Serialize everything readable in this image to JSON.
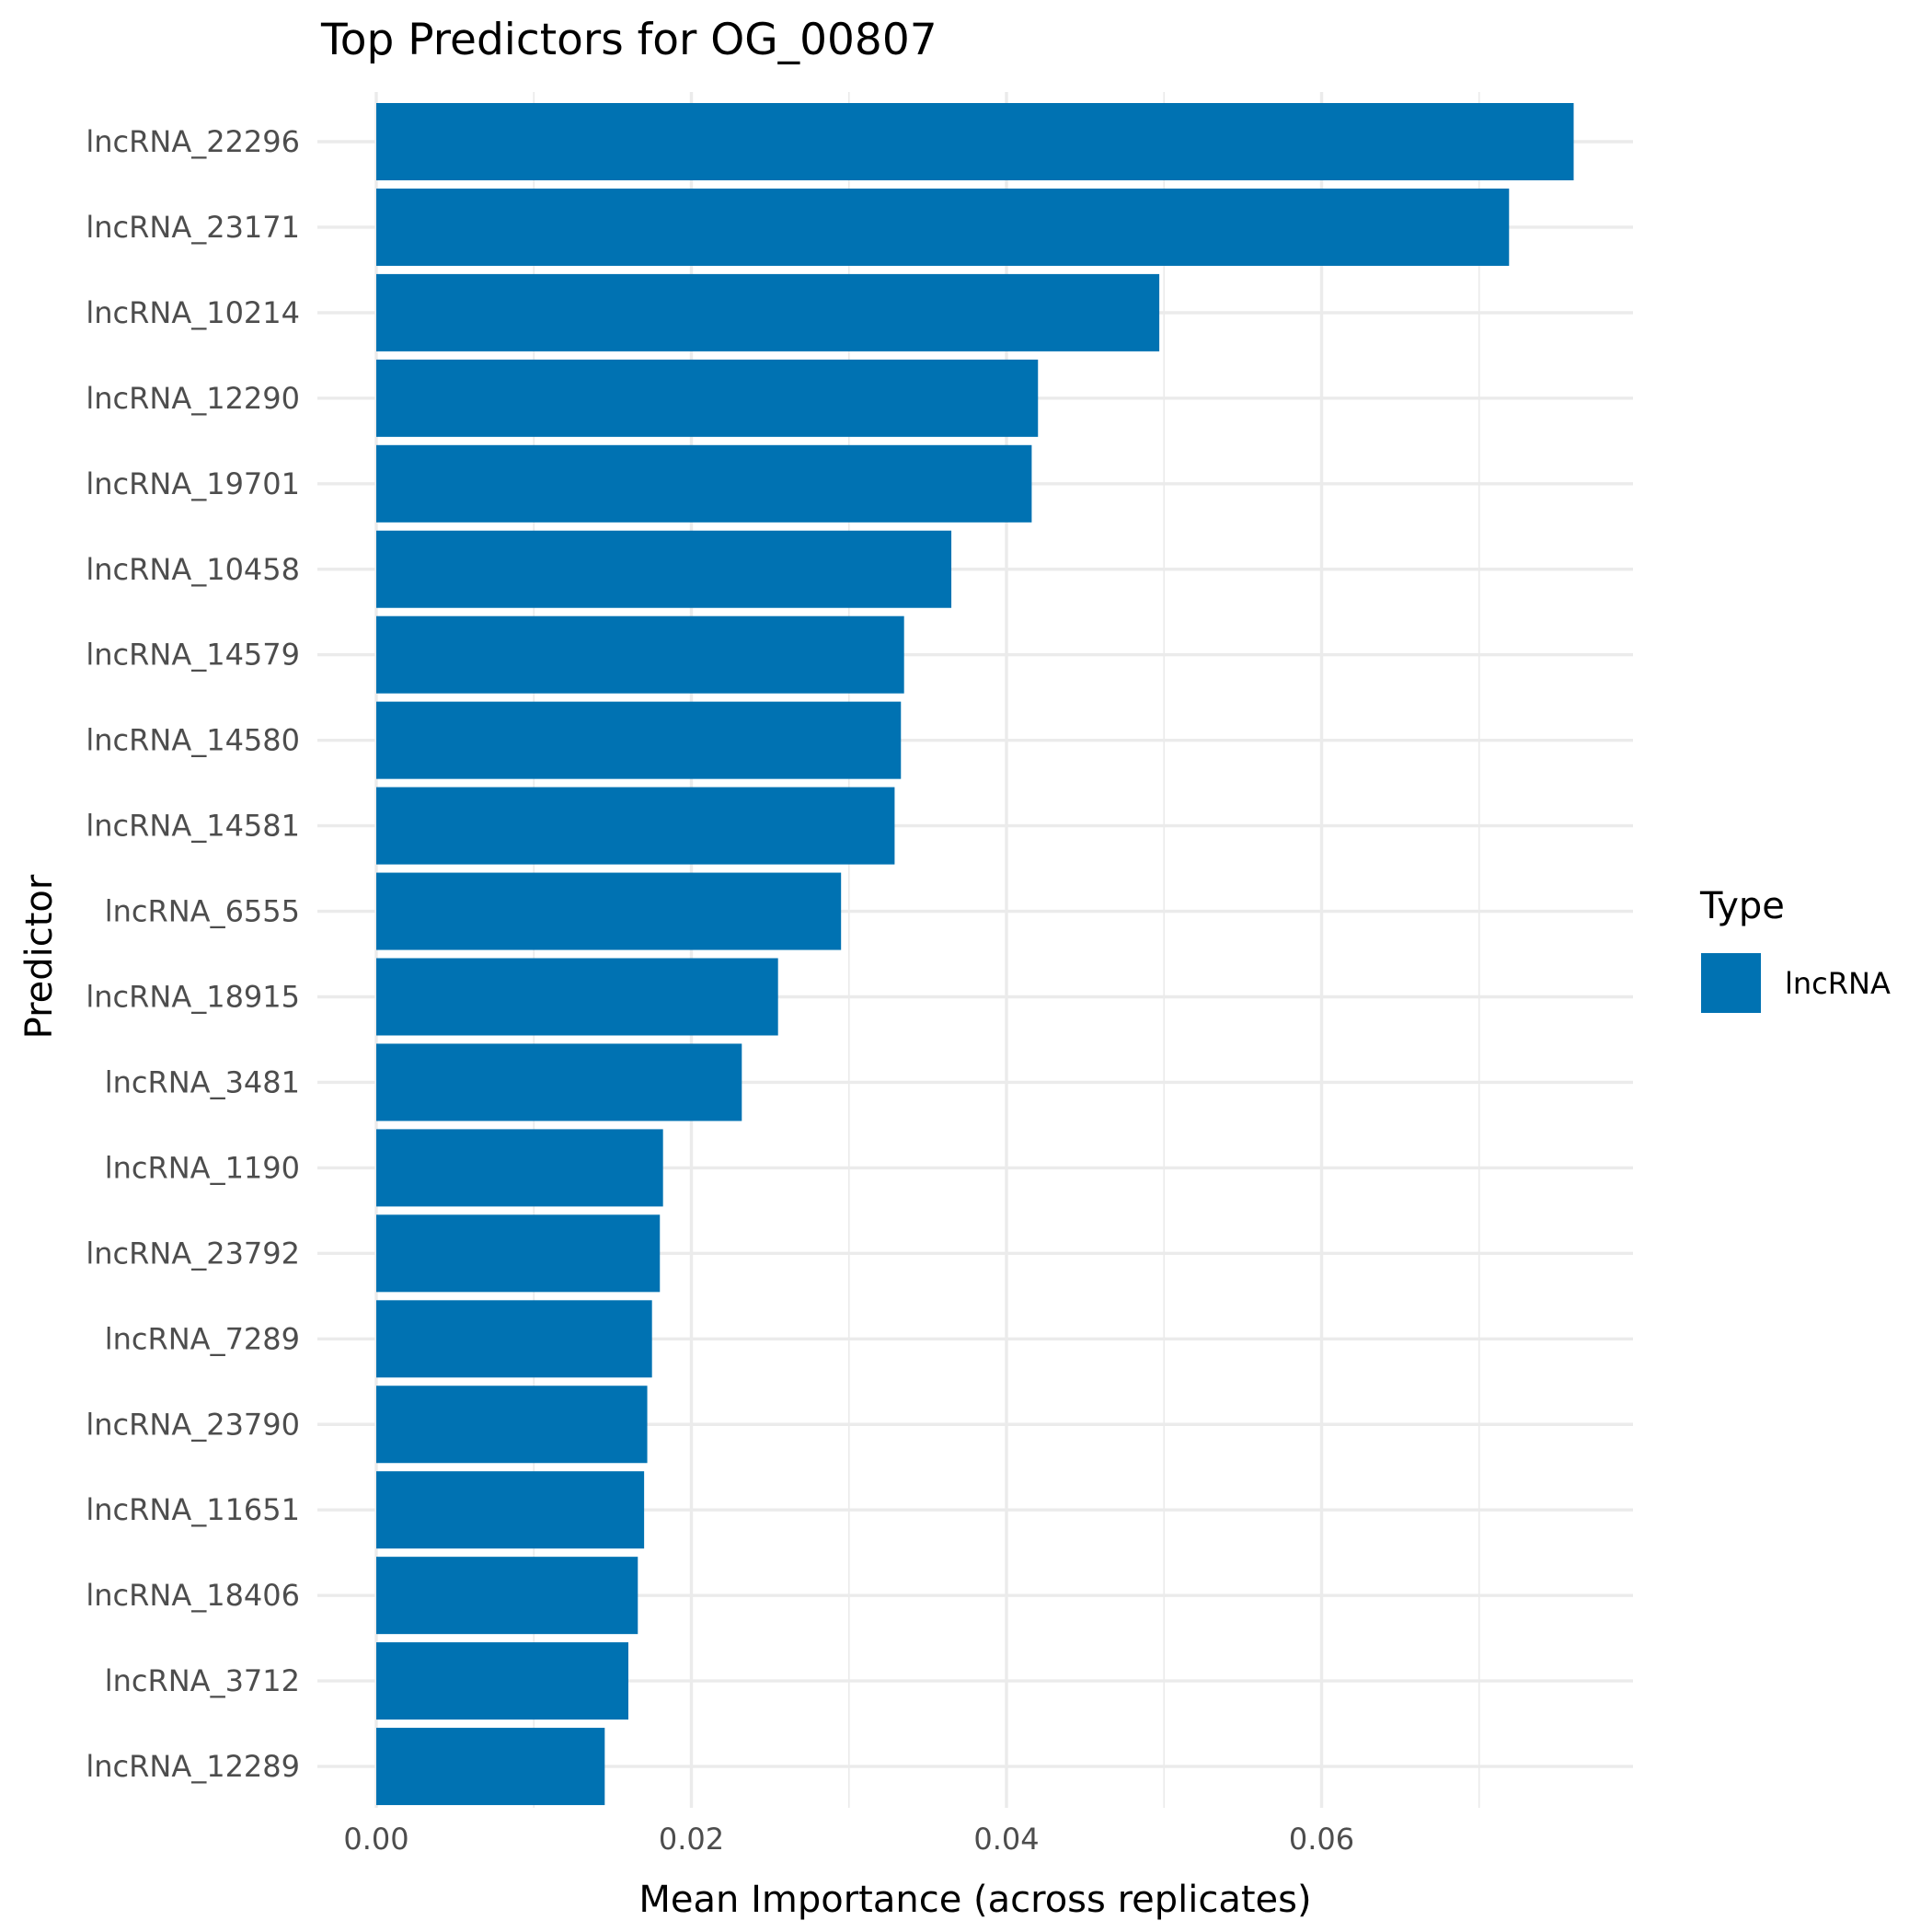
{
  "chart_data": {
    "type": "bar",
    "orientation": "horizontal",
    "title": "Top Predictors for OG_00807",
    "xlabel": "Mean Importance (across replicates)",
    "ylabel": "Predictor",
    "xlim": [
      0,
      0.08
    ],
    "x_ticks": [
      "0.00",
      "0.02",
      "0.04",
      "0.06"
    ],
    "x_tick_values": [
      0,
      0.02,
      0.04,
      0.06
    ],
    "grid": true,
    "legend": {
      "title": "Type",
      "placement": "right",
      "entries": [
        "lncRNA"
      ]
    },
    "colors": {
      "lncRNA": "#0072b2"
    },
    "categories": [
      "lncRNA_22296",
      "lncRNA_23171",
      "lncRNA_10214",
      "lncRNA_12290",
      "lncRNA_19701",
      "lncRNA_10458",
      "lncRNA_14579",
      "lncRNA_14580",
      "lncRNA_14581",
      "lncRNA_6555",
      "lncRNA_18915",
      "lncRNA_3481",
      "lncRNA_1190",
      "lncRNA_23792",
      "lncRNA_7289",
      "lncRNA_23790",
      "lncRNA_11651",
      "lncRNA_18406",
      "lncRNA_3712",
      "lncRNA_12289"
    ],
    "series": [
      {
        "name": "lncRNA",
        "values": [
          0.076,
          0.0719,
          0.0497,
          0.042,
          0.0416,
          0.0365,
          0.0335,
          0.0333,
          0.0329,
          0.0295,
          0.0255,
          0.0232,
          0.0182,
          0.018,
          0.0175,
          0.0172,
          0.017,
          0.0166,
          0.016,
          0.0145
        ]
      }
    ]
  }
}
